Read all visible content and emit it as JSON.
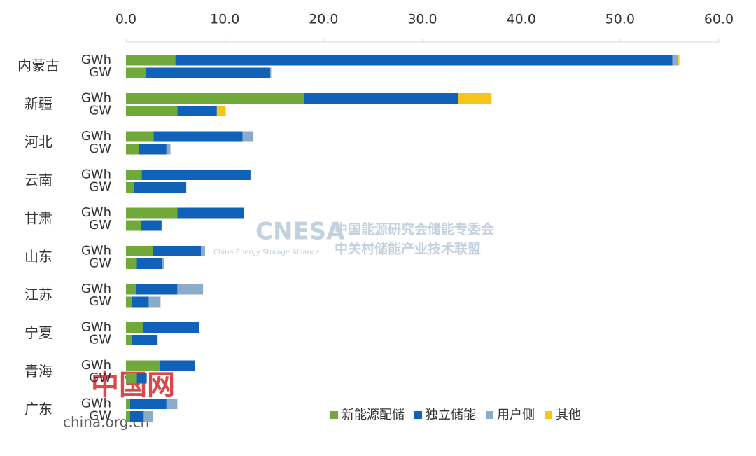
{
  "chart_data": {
    "type": "stacked-bar-horizontal",
    "categories": [
      "内蒙古",
      "新疆",
      "河北",
      "云南",
      "甘肃",
      "山东",
      "江苏",
      "宁夏",
      "青海",
      "广东"
    ],
    "rows": [
      "GWh",
      "GW"
    ],
    "series": [
      {
        "name": "新能源配储",
        "color": "#70a83a",
        "values": [
          [
            5.0,
            2.0
          ],
          [
            18.0,
            5.2
          ],
          [
            2.8,
            1.3
          ],
          [
            1.6,
            0.8
          ],
          [
            5.2,
            1.5
          ],
          [
            2.7,
            1.1
          ],
          [
            1.0,
            0.6
          ],
          [
            1.7,
            0.6
          ],
          [
            3.4,
            1.1
          ],
          [
            0.4,
            0.4
          ]
        ]
      },
      {
        "name": "独立储能",
        "color": "#0f62b8",
        "values": [
          [
            50.3,
            12.6
          ],
          [
            15.6,
            4.0
          ],
          [
            9.0,
            2.8
          ],
          [
            11.0,
            5.3
          ],
          [
            6.7,
            2.1
          ],
          [
            4.9,
            2.6
          ],
          [
            4.2,
            1.7
          ],
          [
            5.7,
            2.6
          ],
          [
            3.6,
            1.0
          ],
          [
            3.7,
            1.4
          ]
        ]
      },
      {
        "name": "用户侧",
        "color": "#8bacc8",
        "values": [
          [
            0.6,
            0.1
          ],
          [
            0,
            0
          ],
          [
            1.1,
            0.4
          ],
          [
            0,
            0
          ],
          [
            0,
            0
          ],
          [
            0.4,
            0.2
          ],
          [
            2.6,
            1.2
          ],
          [
            0,
            0
          ],
          [
            0,
            0
          ],
          [
            1.1,
            0.9
          ]
        ]
      },
      {
        "name": "其他",
        "color": "#f5c518",
        "values": [
          [
            0.1,
            0
          ],
          [
            3.4,
            0.9
          ],
          [
            0,
            0
          ],
          [
            0,
            0
          ],
          [
            0,
            0
          ],
          [
            0,
            0
          ],
          [
            0,
            0
          ],
          [
            0,
            0
          ],
          [
            0,
            0
          ],
          [
            0,
            0
          ]
        ]
      }
    ],
    "xlim": [
      0,
      60
    ],
    "xticks": [
      {
        "value": 0,
        "label": "0.0"
      },
      {
        "value": 10,
        "label": "10.0"
      },
      {
        "value": 20,
        "label": "20.0"
      },
      {
        "value": 30,
        "label": "30.0"
      },
      {
        "value": 40,
        "label": "40.0"
      },
      {
        "value": 50,
        "label": "50.0"
      },
      {
        "value": 60,
        "label": "60.0"
      }
    ],
    "watermarks": [
      "CNESA",
      "China Energy Storage Alliance",
      "中国能源研究会储能专委会",
      "中关村储能产业技术联盟",
      "中国网",
      "china.org.cn"
    ]
  }
}
